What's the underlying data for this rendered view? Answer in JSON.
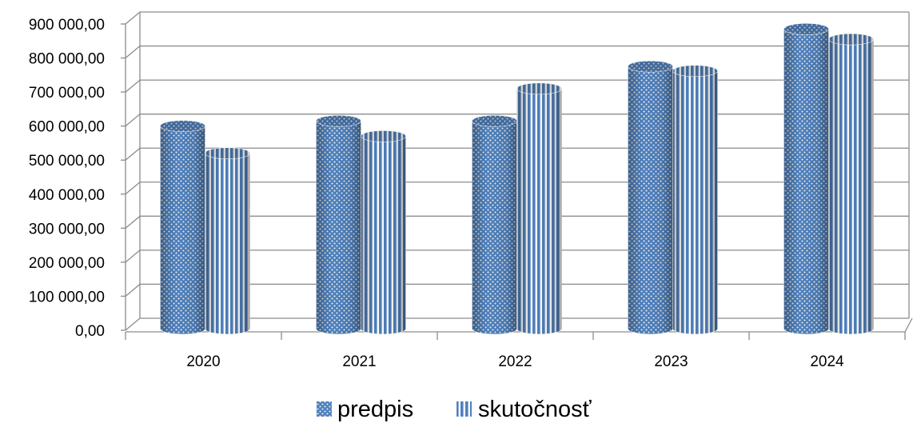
{
  "chart_data": {
    "type": "bar",
    "style": "3d-cylinder",
    "categories": [
      "2020",
      "2021",
      "2022",
      "2023",
      "2024"
    ],
    "series": [
      {
        "name": "predpis",
        "values": [
          600000,
          615000,
          615000,
          775000,
          885000
        ],
        "color": "#4f81bd",
        "pattern": "dots"
      },
      {
        "name": "skutočnosť",
        "values": [
          520000,
          570000,
          710000,
          762000,
          855000
        ],
        "color": "#4f81bd",
        "pattern": "vertical-stripes"
      }
    ],
    "yticks": [
      "0,00",
      "100 000,00",
      "200 000,00",
      "300 000,00",
      "400 000,00",
      "500 000,00",
      "600 000,00",
      "700 000,00",
      "800 000,00",
      "900 000,00"
    ],
    "ylim": [
      0,
      900000
    ],
    "grid": true,
    "legend_position": "bottom",
    "title": "",
    "xlabel": "",
    "ylabel": ""
  }
}
